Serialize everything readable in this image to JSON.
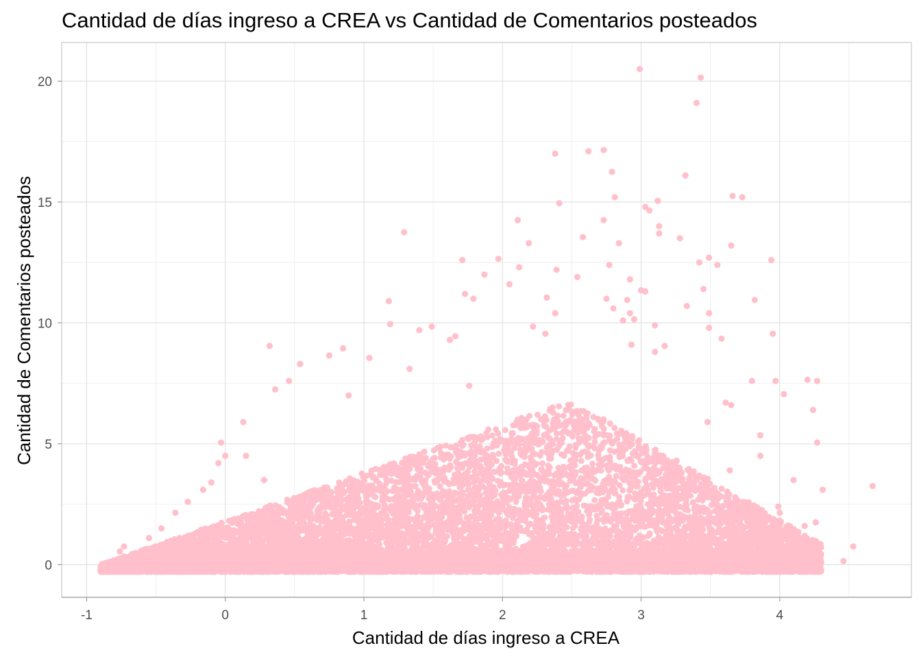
{
  "chart_data": {
    "type": "scatter",
    "title": "Cantidad de días ingreso a CREA vs Cantidad de Comentarios posteados",
    "xlabel": "Cantidad de días ingreso a CREA",
    "ylabel": "Cantidad de Comentarios posteados",
    "xlim": [
      -1.18,
      4.95
    ],
    "ylim": [
      -1.35,
      21.6
    ],
    "xticks": [
      -1,
      0,
      1,
      2,
      3,
      4
    ],
    "yticks": [
      0,
      5,
      10,
      15,
      20
    ],
    "xtick_labels": [
      "-1",
      "0",
      "1",
      "2",
      "3",
      "4"
    ],
    "ytick_labels": [
      "0",
      "5",
      "10",
      "15",
      "20"
    ],
    "grid": true,
    "legend": "none",
    "point_color": "#FFC0CB",
    "dense_cloud_estimate": {
      "x_min": -0.9,
      "x_max": 4.3,
      "y_floor": -0.3,
      "description_points_shape": "upper envelope rises from about 0 at x=-0.9 to about 7 near x=2.5 then falls"
    },
    "points": [
      [
        2.99,
        20.5
      ],
      [
        3.43,
        20.15
      ],
      [
        3.4,
        19.1
      ],
      [
        2.38,
        17.0
      ],
      [
        2.62,
        17.1
      ],
      [
        2.73,
        17.15
      ],
      [
        2.79,
        16.25
      ],
      [
        3.32,
        16.1
      ],
      [
        2.41,
        14.95
      ],
      [
        2.81,
        15.2
      ],
      [
        3.03,
        14.8
      ],
      [
        3.06,
        14.65
      ],
      [
        3.12,
        15.05
      ],
      [
        3.66,
        15.25
      ],
      [
        3.73,
        15.2
      ],
      [
        2.73,
        14.25
      ],
      [
        3.13,
        14.0
      ],
      [
        2.11,
        14.25
      ],
      [
        3.13,
        13.7
      ],
      [
        1.29,
        13.75
      ],
      [
        2.58,
        13.55
      ],
      [
        3.28,
        13.5
      ],
      [
        2.84,
        13.3
      ],
      [
        2.19,
        13.3
      ],
      [
        1.97,
        12.65
      ],
      [
        3.65,
        13.2
      ],
      [
        1.71,
        12.6
      ],
      [
        3.49,
        12.7
      ],
      [
        3.42,
        12.5
      ],
      [
        3.55,
        12.4
      ],
      [
        2.77,
        12.4
      ],
      [
        2.12,
        12.3
      ],
      [
        2.39,
        12.2
      ],
      [
        3.94,
        12.6
      ],
      [
        1.87,
        12.0
      ],
      [
        2.05,
        11.6
      ],
      [
        2.54,
        11.9
      ],
      [
        2.92,
        11.8
      ],
      [
        1.73,
        11.2
      ],
      [
        1.79,
        11.0
      ],
      [
        3.45,
        11.4
      ],
      [
        3.0,
        11.35
      ],
      [
        3.03,
        11.3
      ],
      [
        1.18,
        10.9
      ],
      [
        3.82,
        10.95
      ],
      [
        2.32,
        11.05
      ],
      [
        2.75,
        11.0
      ],
      [
        3.33,
        10.7
      ],
      [
        2.8,
        10.6
      ],
      [
        2.9,
        10.95
      ],
      [
        3.49,
        10.4
      ],
      [
        2.92,
        10.4
      ],
      [
        2.95,
        10.15
      ],
      [
        2.38,
        10.4
      ],
      [
        1.19,
        9.95
      ],
      [
        2.22,
        9.85
      ],
      [
        2.87,
        10.1
      ],
      [
        3.1,
        9.9
      ],
      [
        1.4,
        9.7
      ],
      [
        1.49,
        9.85
      ],
      [
        3.49,
        9.8
      ],
      [
        2.31,
        9.55
      ],
      [
        3.95,
        9.55
      ],
      [
        1.62,
        9.3
      ],
      [
        0.85,
        8.95
      ],
      [
        0.32,
        9.05
      ],
      [
        1.66,
        9.45
      ],
      [
        3.58,
        9.35
      ],
      [
        3.17,
        9.05
      ],
      [
        2.93,
        9.1
      ],
      [
        0.75,
        8.65
      ],
      [
        0.54,
        8.3
      ],
      [
        1.33,
        8.1
      ],
      [
        3.1,
        8.8
      ],
      [
        1.04,
        8.55
      ],
      [
        3.8,
        7.6
      ],
      [
        4.03,
        7.05
      ],
      [
        3.97,
        7.6
      ],
      [
        4.2,
        7.65
      ],
      [
        4.27,
        7.6
      ],
      [
        0.46,
        7.6
      ],
      [
        0.36,
        7.25
      ],
      [
        0.89,
        7.0
      ],
      [
        1.76,
        7.4
      ],
      [
        3.65,
        6.6
      ],
      [
        3.61,
        6.7
      ],
      [
        4.24,
        6.4
      ],
      [
        3.48,
        5.9
      ],
      [
        3.86,
        5.35
      ],
      [
        4.27,
        5.05
      ],
      [
        3.86,
        4.5
      ],
      [
        4.1,
        3.5
      ],
      [
        4.31,
        3.1
      ],
      [
        4.67,
        3.25
      ],
      [
        3.64,
        3.9
      ],
      [
        0.13,
        5.9
      ],
      [
        -0.03,
        5.05
      ],
      [
        0.0,
        4.5
      ],
      [
        -0.05,
        4.2
      ],
      [
        0.15,
        4.5
      ],
      [
        0.28,
        3.5
      ],
      [
        -0.1,
        3.4
      ],
      [
        -0.16,
        3.1
      ],
      [
        -0.27,
        2.6
      ],
      [
        -0.36,
        2.15
      ],
      [
        -0.46,
        1.5
      ],
      [
        -0.55,
        1.1
      ],
      [
        -0.73,
        0.75
      ],
      [
        -0.76,
        0.55
      ],
      [
        -0.88,
        -0.3
      ],
      [
        4.18,
        1.6
      ],
      [
        4.26,
        1.75
      ],
      [
        4.0,
        2.15
      ],
      [
        4.0,
        1.35
      ],
      [
        3.99,
        2.4
      ],
      [
        3.84,
        2.35
      ],
      [
        3.88,
        1.5
      ],
      [
        4.08,
        0.8
      ],
      [
        4.53,
        0.75
      ],
      [
        4.46,
        0.15
      ],
      [
        4.29,
        0.0
      ],
      [
        4.2,
        -0.05
      ],
      [
        4.01,
        0.1
      ],
      [
        3.79,
        -0.05
      ]
    ]
  }
}
